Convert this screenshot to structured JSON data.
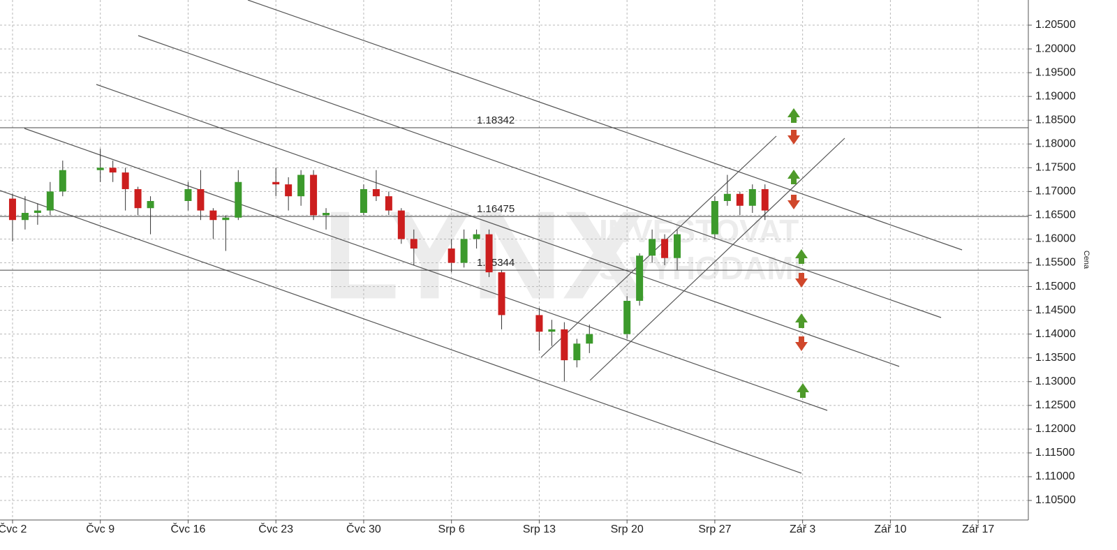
{
  "chart_data": {
    "type": "candlestick",
    "y_label": "Cena",
    "watermark": [
      "LYNX",
      "INVESTOVAT",
      "S VÝHODAMI"
    ],
    "x": [
      "07-02",
      "07-03",
      "07-04",
      "07-05",
      "07-06",
      "07-09",
      "07-10",
      "07-11",
      "07-12",
      "07-13",
      "07-16",
      "07-17",
      "07-18",
      "07-19",
      "07-20",
      "07-23",
      "07-24",
      "07-25",
      "07-26",
      "07-27",
      "07-30",
      "07-31",
      "08-01",
      "08-02",
      "08-03",
      "08-06",
      "08-07",
      "08-08",
      "08-09",
      "08-10",
      "08-13",
      "08-14",
      "08-15",
      "08-16",
      "08-17",
      "08-20",
      "08-21",
      "08-22",
      "08-23",
      "08-24",
      "08-27",
      "08-28",
      "08-29",
      "08-30",
      "08-31"
    ],
    "open": [
      1.1685,
      1.164,
      1.1655,
      1.166,
      1.17,
      1.1745,
      1.175,
      1.174,
      1.1705,
      1.1665,
      1.168,
      1.1705,
      1.166,
      1.164,
      1.1645,
      1.172,
      1.1715,
      1.169,
      1.1735,
      1.165,
      1.1655,
      1.1705,
      1.169,
      1.166,
      1.16,
      1.158,
      1.155,
      1.16,
      1.161,
      1.153,
      1.144,
      1.1405,
      1.141,
      1.1345,
      1.138,
      1.14,
      1.147,
      1.1565,
      1.16,
      1.156,
      1.161,
      1.168,
      1.1695,
      1.167,
      1.1705
    ],
    "high": [
      1.1695,
      1.169,
      1.1675,
      1.172,
      1.1765,
      1.179,
      1.1765,
      1.175,
      1.171,
      1.169,
      1.172,
      1.1745,
      1.1665,
      1.165,
      1.1745,
      1.175,
      1.173,
      1.1745,
      1.1745,
      1.1665,
      1.1715,
      1.1745,
      1.17,
      1.1665,
      1.162,
      1.16,
      1.162,
      1.162,
      1.162,
      1.1535,
      1.1455,
      1.143,
      1.1425,
      1.139,
      1.142,
      1.148,
      1.157,
      1.162,
      1.161,
      1.162,
      1.169,
      1.1735,
      1.17,
      1.1715,
      1.1715
    ],
    "low": [
      1.1595,
      1.162,
      1.163,
      1.165,
      1.169,
      1.172,
      1.172,
      1.166,
      1.165,
      1.161,
      1.166,
      1.164,
      1.16,
      1.1575,
      1.164,
      1.169,
      1.166,
      1.167,
      1.164,
      1.162,
      1.165,
      1.168,
      1.165,
      1.159,
      1.1545,
      1.153,
      1.154,
      1.158,
      1.152,
      1.141,
      1.1365,
      1.1375,
      1.13,
      1.133,
      1.136,
      1.139,
      1.146,
      1.155,
      1.1545,
      1.1535,
      1.16,
      1.167,
      1.165,
      1.1655,
      1.164
    ],
    "close": [
      1.164,
      1.1655,
      1.166,
      1.17,
      1.1745,
      1.175,
      1.174,
      1.1705,
      1.1665,
      1.168,
      1.1705,
      1.166,
      1.164,
      1.1645,
      1.172,
      1.1715,
      1.169,
      1.1735,
      1.165,
      1.1655,
      1.1705,
      1.169,
      1.166,
      1.16,
      1.158,
      1.155,
      1.16,
      1.161,
      1.153,
      1.144,
      1.1405,
      1.141,
      1.1345,
      1.138,
      1.14,
      1.147,
      1.1565,
      1.16,
      1.156,
      1.161,
      1.168,
      1.1695,
      1.167,
      1.1705,
      1.166
    ],
    "up_color": "#3c9a2c",
    "down_color": "#cc1e1e",
    "levels": [
      1.18342,
      1.16475,
      1.15344
    ],
    "xlim": [
      "07-01",
      "09-21"
    ],
    "xticks": [
      {
        "value": "07-02",
        "label": "Čvc 2"
      },
      {
        "value": "07-09",
        "label": "Čvc 9"
      },
      {
        "value": "07-16",
        "label": "Čvc 16"
      },
      {
        "value": "07-23",
        "label": "Čvc 23"
      },
      {
        "value": "07-30",
        "label": "Čvc 30"
      },
      {
        "value": "08-06",
        "label": "Srp 6"
      },
      {
        "value": "08-13",
        "label": "Srp 13"
      },
      {
        "value": "08-20",
        "label": "Srp 20"
      },
      {
        "value": "08-27",
        "label": "Srp 27"
      },
      {
        "value": "09-03",
        "label": "Zář 3"
      },
      {
        "value": "09-10",
        "label": "Zář 10"
      },
      {
        "value": "09-17",
        "label": "Zář 17"
      }
    ],
    "ylim": [
      1.10089,
      1.21029
    ],
    "yticks": [
      {
        "value": 1.105,
        "label": "1.10500"
      },
      {
        "value": 1.11,
        "label": "1.11000"
      },
      {
        "value": 1.115,
        "label": "1.11500"
      },
      {
        "value": 1.12,
        "label": "1.12000"
      },
      {
        "value": 1.125,
        "label": "1.12500"
      },
      {
        "value": 1.13,
        "label": "1.13000"
      },
      {
        "value": 1.135,
        "label": "1.13500"
      },
      {
        "value": 1.14,
        "label": "1.14000"
      },
      {
        "value": 1.145,
        "label": "1.14500"
      },
      {
        "value": 1.15,
        "label": "1.15000"
      },
      {
        "value": 1.155,
        "label": "1.15500"
      },
      {
        "value": 1.16,
        "label": "1.16000"
      },
      {
        "value": 1.165,
        "label": "1.16500"
      },
      {
        "value": 1.17,
        "label": "1.17000"
      },
      {
        "value": 1.175,
        "label": "1.17500"
      },
      {
        "value": 1.18,
        "label": "1.18000"
      },
      {
        "value": 1.185,
        "label": "1.18500"
      },
      {
        "value": 1.19,
        "label": "1.19000"
      },
      {
        "value": 1.195,
        "label": "1.19500"
      },
      {
        "value": 1.2,
        "label": "1.20000"
      },
      {
        "value": 1.205,
        "label": "1.20500"
      }
    ],
    "grid": true
  }
}
